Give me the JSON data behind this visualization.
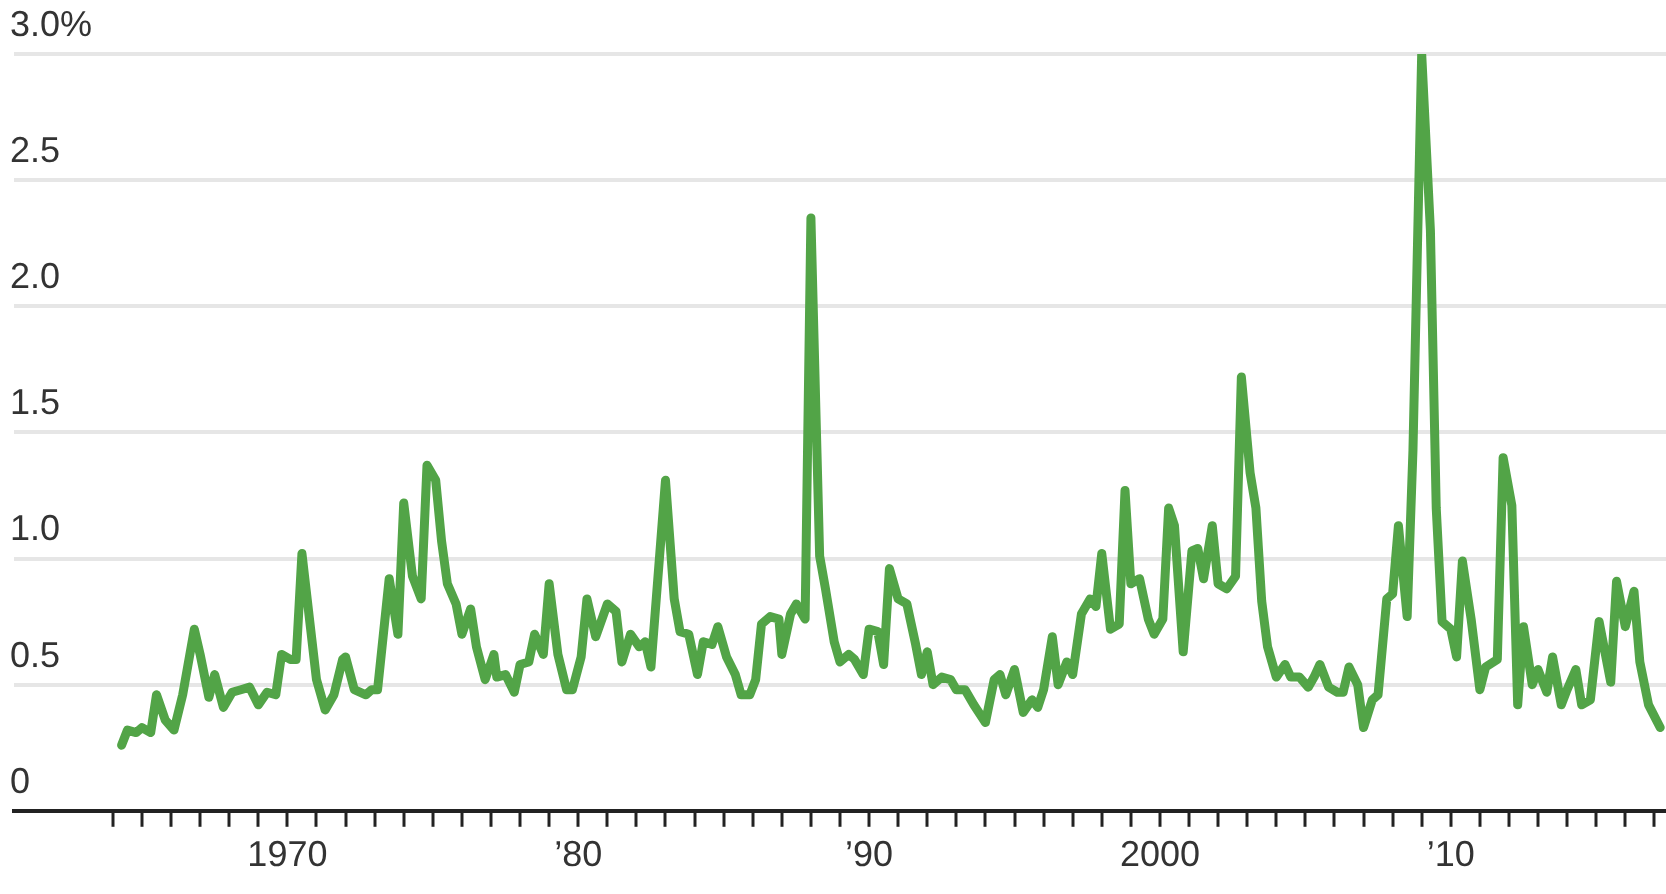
{
  "chart_data": {
    "type": "line",
    "x": [
      1964.3,
      1964.5,
      1964.8,
      1965.0,
      1965.3,
      1965.5,
      1965.8,
      1966.1,
      1966.4,
      1966.8,
      1967.0,
      1967.3,
      1967.5,
      1967.8,
      1968.1,
      1968.4,
      1968.7,
      1969.0,
      1969.3,
      1969.6,
      1969.8,
      1970.1,
      1970.3,
      1970.5,
      1970.8,
      1971.0,
      1971.3,
      1971.6,
      1971.9,
      1972.0,
      1972.3,
      1972.7,
      1972.9,
      1973.1,
      1973.5,
      1973.8,
      1974.0,
      1974.3,
      1974.6,
      1974.8,
      1975.1,
      1975.3,
      1975.5,
      1975.8,
      1976.0,
      1976.3,
      1976.5,
      1976.8,
      1977.1,
      1977.2,
      1977.5,
      1977.8,
      1978.0,
      1978.3,
      1978.5,
      1978.8,
      1979.0,
      1979.3,
      1979.6,
      1979.8,
      1980.1,
      1980.3,
      1980.6,
      1981.0,
      1981.3,
      1981.5,
      1981.8,
      1982.1,
      1982.3,
      1982.5,
      1983.0,
      1983.3,
      1983.5,
      1983.8,
      1984.1,
      1984.3,
      1984.6,
      1984.8,
      1985.1,
      1985.4,
      1985.6,
      1985.9,
      1986.1,
      1986.3,
      1986.6,
      1986.9,
      1987.0,
      1987.3,
      1987.5,
      1987.8,
      1988.0,
      1988.3,
      1988.5,
      1988.8,
      1989.0,
      1989.3,
      1989.5,
      1989.8,
      1990.0,
      1990.3,
      1990.5,
      1990.7,
      1991.0,
      1991.3,
      1991.6,
      1991.8,
      1992.0,
      1992.2,
      1992.5,
      1992.8,
      1993.0,
      1993.3,
      1993.6,
      1994.0,
      1994.3,
      1994.5,
      1994.7,
      1995.0,
      1995.3,
      1995.6,
      1995.8,
      1996.0,
      1996.3,
      1996.5,
      1996.8,
      1997.0,
      1997.3,
      1997.6,
      1997.8,
      1998.0,
      1998.3,
      1998.6,
      1998.8,
      1999.0,
      1999.3,
      1999.6,
      1999.8,
      2000.1,
      2000.3,
      2000.5,
      2000.8,
      2001.1,
      2001.3,
      2001.5,
      2001.8,
      2002.0,
      2002.3,
      2002.6,
      2002.8,
      2003.1,
      2003.3,
      2003.5,
      2003.7,
      2004.0,
      2004.3,
      2004.5,
      2004.8,
      2005.1,
      2005.3,
      2005.5,
      2005.8,
      2006.1,
      2006.3,
      2006.5,
      2006.8,
      2007.0,
      2007.3,
      2007.5,
      2007.8,
      2008.0,
      2008.2,
      2008.5,
      2008.7,
      2009.0,
      2009.3,
      2009.5,
      2009.7,
      2010.0,
      2010.2,
      2010.4,
      2010.7,
      2011.0,
      2011.2,
      2011.6,
      2011.8,
      2012.1,
      2012.3,
      2012.5,
      2012.8,
      2013.0,
      2013.3,
      2013.5,
      2013.8,
      2014.0,
      2014.3,
      2014.5,
      2014.8,
      2015.1,
      2015.5,
      2015.7,
      2016.0,
      2016.3,
      2016.5,
      2016.8,
      2017.2
    ],
    "series": [
      {
        "color": "#52a447",
        "values": [
          0.26,
          0.32,
          0.31,
          0.33,
          0.31,
          0.46,
          0.36,
          0.32,
          0.46,
          0.72,
          0.62,
          0.45,
          0.54,
          0.41,
          0.47,
          0.48,
          0.49,
          0.42,
          0.47,
          0.46,
          0.62,
          0.6,
          0.6,
          1.02,
          0.72,
          0.52,
          0.4,
          0.46,
          0.6,
          0.61,
          0.48,
          0.46,
          0.48,
          0.48,
          0.92,
          0.7,
          1.22,
          0.93,
          0.84,
          1.37,
          1.31,
          1.07,
          0.9,
          0.82,
          0.7,
          0.8,
          0.65,
          0.52,
          0.62,
          0.53,
          0.54,
          0.47,
          0.58,
          0.59,
          0.7,
          0.62,
          0.9,
          0.62,
          0.48,
          0.48,
          0.61,
          0.84,
          0.69,
          0.82,
          0.79,
          0.59,
          0.7,
          0.65,
          0.67,
          0.57,
          1.31,
          0.84,
          0.71,
          0.7,
          0.54,
          0.67,
          0.66,
          0.73,
          0.61,
          0.54,
          0.46,
          0.46,
          0.52,
          0.74,
          0.77,
          0.76,
          0.62,
          0.78,
          0.82,
          0.76,
          2.35,
          1.01,
          0.88,
          0.67,
          0.59,
          0.62,
          0.6,
          0.54,
          0.72,
          0.71,
          0.58,
          0.96,
          0.84,
          0.82,
          0.66,
          0.54,
          0.63,
          0.5,
          0.53,
          0.52,
          0.48,
          0.48,
          0.42,
          0.35,
          0.52,
          0.54,
          0.46,
          0.56,
          0.39,
          0.44,
          0.41,
          0.48,
          0.69,
          0.5,
          0.59,
          0.54,
          0.78,
          0.84,
          0.81,
          1.02,
          0.72,
          0.74,
          1.27,
          0.9,
          0.92,
          0.76,
          0.7,
          0.76,
          1.2,
          1.13,
          0.63,
          1.03,
          1.04,
          0.92,
          1.13,
          0.9,
          0.88,
          0.93,
          1.72,
          1.34,
          1.2,
          0.83,
          0.65,
          0.53,
          0.58,
          0.53,
          0.53,
          0.49,
          0.53,
          0.58,
          0.49,
          0.47,
          0.47,
          0.57,
          0.5,
          0.33,
          0.44,
          0.46,
          0.84,
          0.86,
          1.13,
          0.77,
          1.43,
          3.0,
          2.3,
          1.2,
          0.75,
          0.72,
          0.61,
          0.99,
          0.76,
          0.48,
          0.57,
          0.6,
          1.4,
          1.21,
          0.42,
          0.73,
          0.5,
          0.56,
          0.47,
          0.61,
          0.42,
          0.48,
          0.56,
          0.42,
          0.44,
          0.75,
          0.51,
          0.91,
          0.73,
          0.87,
          0.59,
          0.42,
          0.33
        ]
      }
    ],
    "xlim": [
      1960.6,
      2017.4
    ],
    "xticks": [
      {
        "value": 1964,
        "label": null
      },
      {
        "value": 1965,
        "label": null
      },
      {
        "value": 1966,
        "label": null
      },
      {
        "value": 1967,
        "label": null
      },
      {
        "value": 1968,
        "label": null
      },
      {
        "value": 1969,
        "label": null
      },
      1970,
      {
        "value": 1971,
        "label": null
      },
      {
        "value": 1972,
        "label": null
      },
      {
        "value": 1973,
        "label": null
      },
      {
        "value": 1974,
        "label": null
      },
      {
        "value": 1975,
        "label": null
      },
      {
        "value": 1976,
        "label": null
      },
      {
        "value": 1977,
        "label": null
      },
      {
        "value": 1978,
        "label": null
      },
      {
        "value": 1979,
        "label": null
      },
      {
        "value": 1980,
        "label": "’80"
      },
      {
        "value": 1981,
        "label": null
      },
      {
        "value": 1982,
        "label": null
      },
      {
        "value": 1983,
        "label": null
      },
      {
        "value": 1984,
        "label": null
      },
      {
        "value": 1985,
        "label": null
      },
      {
        "value": 1986,
        "label": null
      },
      {
        "value": 1987,
        "label": null
      },
      {
        "value": 1988,
        "label": null
      },
      {
        "value": 1989,
        "label": null
      },
      {
        "value": 1990,
        "label": "’90"
      },
      {
        "value": 1991,
        "label": null
      },
      {
        "value": 1992,
        "label": null
      },
      {
        "value": 1993,
        "label": null
      },
      {
        "value": 1994,
        "label": null
      },
      {
        "value": 1995,
        "label": null
      },
      {
        "value": 1996,
        "label": null
      },
      {
        "value": 1997,
        "label": null
      },
      {
        "value": 1998,
        "label": null
      },
      {
        "value": 1999,
        "label": null
      },
      2000,
      {
        "value": 2001,
        "label": null
      },
      {
        "value": 2002,
        "label": null
      },
      {
        "value": 2003,
        "label": null
      },
      {
        "value": 2004,
        "label": null
      },
      {
        "value": 2005,
        "label": null
      },
      {
        "value": 2006,
        "label": null
      },
      {
        "value": 2007,
        "label": null
      },
      {
        "value": 2008,
        "label": null
      },
      {
        "value": 2009,
        "label": null
      },
      {
        "value": 2010,
        "label": "’10"
      },
      {
        "value": 2011,
        "label": null
      },
      {
        "value": 2012,
        "label": null
      },
      {
        "value": 2013,
        "label": null
      },
      {
        "value": 2014,
        "label": null
      },
      {
        "value": 2015,
        "label": null
      },
      {
        "value": 2016,
        "label": null
      },
      {
        "value": 2017,
        "label": null
      }
    ],
    "ylim": [
      0,
      3.0
    ],
    "yticks": [
      0,
      0.5,
      {
        "value": 1,
        "label": "1.0"
      },
      1.5,
      {
        "value": 2,
        "label": "2.0"
      },
      2.5,
      {
        "value": 3,
        "label": "3.0%"
      }
    ],
    "grid": "y",
    "legend": false,
    "marker": "none",
    "line_style": "solid"
  }
}
